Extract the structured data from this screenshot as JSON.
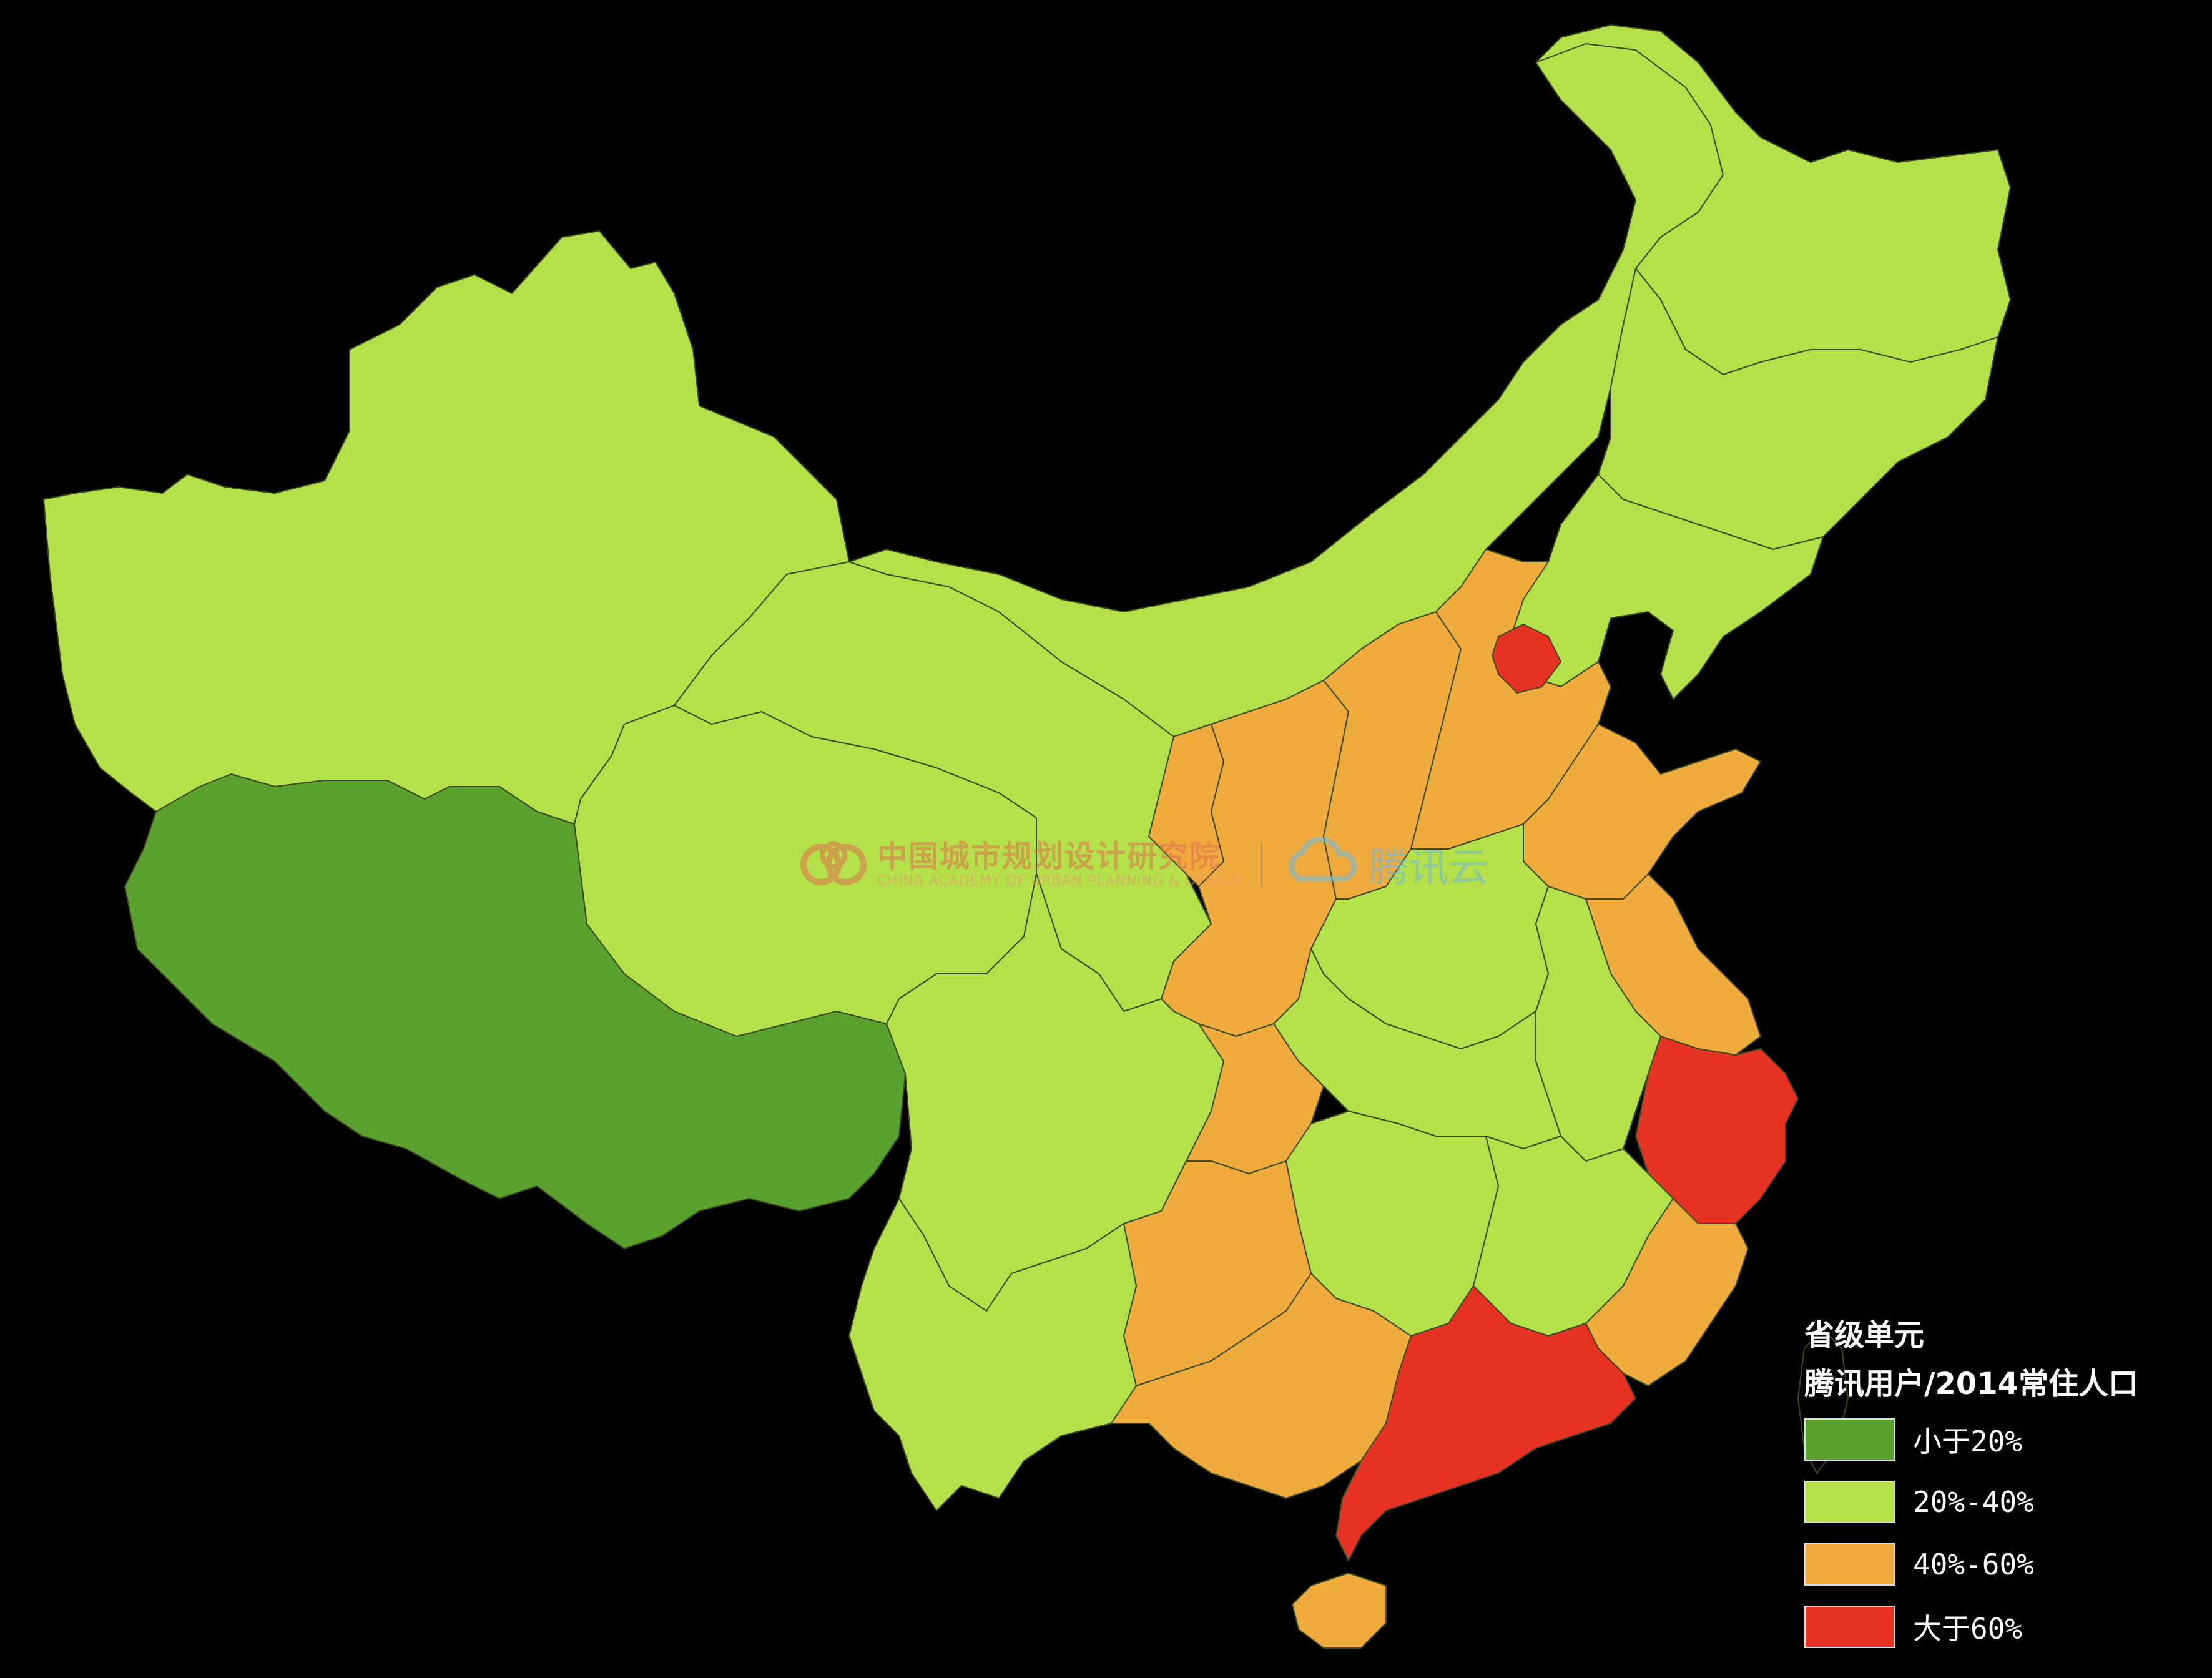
{
  "legend": {
    "title_line1": "省级单元",
    "title_line2": "腾讯用户/2014常住人口",
    "items": [
      {
        "label": "小于20%",
        "color": "#5aa22d"
      },
      {
        "label": "20%-40%",
        "color": "#b4e04a"
      },
      {
        "label": "40%-60%",
        "color": "#f0ab3d"
      },
      {
        "label": "大于60%",
        "color": "#e63222"
      }
    ]
  },
  "watermark": {
    "org_cn": "中国城市规划设计研究院",
    "org_en": "CHINA ACADEMY OF URBAN PLANNING & DESIGN",
    "brand": "腾讯云"
  },
  "map": {
    "background": "#000000",
    "boundary_color": "#3a4a1a",
    "regions": [
      {
        "id": "xinjiang",
        "class": "20%-40%"
      },
      {
        "id": "tibet",
        "class": "小于20%"
      },
      {
        "id": "qinghai",
        "class": "20%-40%"
      },
      {
        "id": "gansu",
        "class": "20%-40%"
      },
      {
        "id": "inner-mongolia",
        "class": "20%-40%"
      },
      {
        "id": "heilongjiang",
        "class": "20%-40%"
      },
      {
        "id": "jilin",
        "class": "20%-40%"
      },
      {
        "id": "liaoning",
        "class": "20%-40%"
      },
      {
        "id": "ningxia",
        "class": "40%-60%"
      },
      {
        "id": "shaanxi",
        "class": "40%-60%"
      },
      {
        "id": "shanxi",
        "class": "40%-60%"
      },
      {
        "id": "hebei",
        "class": "40%-60%"
      },
      {
        "id": "beijing",
        "class": "大于60%"
      },
      {
        "id": "shandong",
        "class": "40%-60%"
      },
      {
        "id": "henan",
        "class": "20%-40%"
      },
      {
        "id": "jiangsu",
        "class": "40%-60%"
      },
      {
        "id": "anhui",
        "class": "20%-40%"
      },
      {
        "id": "zhejiang",
        "class": "大于60%"
      },
      {
        "id": "sichuan",
        "class": "20%-40%"
      },
      {
        "id": "chongqing",
        "class": "40%-60%"
      },
      {
        "id": "hubei",
        "class": "20%-40%"
      },
      {
        "id": "hunan",
        "class": "20%-40%"
      },
      {
        "id": "jiangxi",
        "class": "20%-40%"
      },
      {
        "id": "fujian",
        "class": "40%-60%"
      },
      {
        "id": "yunnan",
        "class": "20%-40%"
      },
      {
        "id": "guizhou",
        "class": "40%-60%"
      },
      {
        "id": "guangxi",
        "class": "40%-60%"
      },
      {
        "id": "guangdong",
        "class": "大于60%"
      },
      {
        "id": "hainan",
        "class": "40%-60%"
      },
      {
        "id": "taiwan",
        "class": "none"
      }
    ]
  }
}
